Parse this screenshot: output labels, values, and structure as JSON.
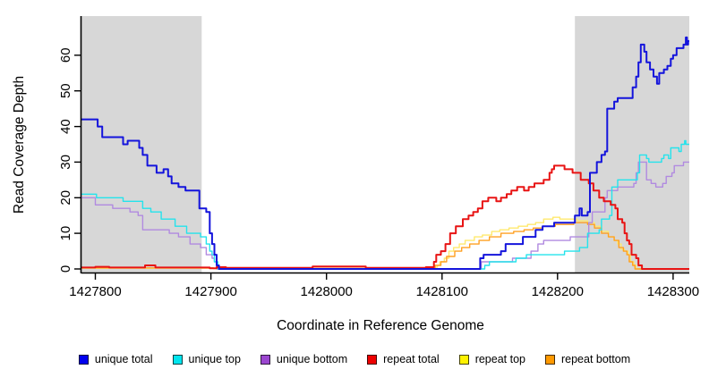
{
  "figure": {
    "shaded_region_color": "#d7d7d7",
    "axis_color": "#000000",
    "background": "#ffffff"
  },
  "chart_data": {
    "type": "line",
    "title": "",
    "xlabel": "Coordinate in Reference Genome",
    "ylabel": "Read Coverage Depth",
    "xlim": [
      1427788,
      1428314
    ],
    "ylim": [
      0,
      65
    ],
    "x_ticks": [
      1427800,
      1427900,
      1428000,
      1428100,
      1428200,
      1428300
    ],
    "y_ticks": [
      0,
      10,
      20,
      30,
      40,
      50,
      60
    ],
    "grid": false,
    "legend_position": "bottom",
    "shaded_regions": [
      {
        "from": 1427788,
        "to": 1427892
      },
      {
        "from": 1428215,
        "to": 1428314
      }
    ],
    "series": [
      {
        "name": "repeat top",
        "color": "#ffe96e",
        "swatch": "#fff200",
        "width": 1.4,
        "points": [
          [
            1427788,
            0.2
          ],
          [
            1427902,
            0.1
          ],
          [
            1428094,
            0.5
          ],
          [
            1428096,
            1
          ],
          [
            1428098,
            2
          ],
          [
            1428102,
            3
          ],
          [
            1428106,
            5
          ],
          [
            1428110,
            6
          ],
          [
            1428115,
            7
          ],
          [
            1428120,
            8
          ],
          [
            1428128,
            9
          ],
          [
            1428135,
            9.5
          ],
          [
            1428143,
            10.5
          ],
          [
            1428150,
            11
          ],
          [
            1428158,
            11.5
          ],
          [
            1428166,
            12
          ],
          [
            1428174,
            12.5
          ],
          [
            1428181,
            13
          ],
          [
            1428188,
            14
          ],
          [
            1428196,
            14.5
          ],
          [
            1428202,
            14
          ],
          [
            1428212,
            14
          ],
          [
            1428217,
            13.5
          ],
          [
            1428226,
            13
          ],
          [
            1428232,
            12
          ],
          [
            1428238,
            10.5
          ],
          [
            1428244,
            9
          ],
          [
            1428249,
            8
          ],
          [
            1428252,
            7
          ],
          [
            1428255,
            5.5
          ],
          [
            1428258,
            5
          ],
          [
            1428261,
            4
          ],
          [
            1428263,
            2
          ],
          [
            1428266,
            1
          ],
          [
            1428268,
            0
          ],
          [
            1428314,
            0
          ]
        ]
      },
      {
        "name": "repeat bottom",
        "color": "#ffa022",
        "swatch": "#ff9900",
        "width": 1.4,
        "points": [
          [
            1427788,
            0.3
          ],
          [
            1427902,
            0.15
          ],
          [
            1428090,
            0.3
          ],
          [
            1428094,
            1
          ],
          [
            1428099,
            2
          ],
          [
            1428104,
            3.5
          ],
          [
            1428111,
            5
          ],
          [
            1428117,
            6
          ],
          [
            1428124,
            7
          ],
          [
            1428132,
            8
          ],
          [
            1428141,
            9
          ],
          [
            1428151,
            10
          ],
          [
            1428162,
            10.5
          ],
          [
            1428171,
            11
          ],
          [
            1428179,
            11.5
          ],
          [
            1428187,
            12
          ],
          [
            1428198,
            12.5
          ],
          [
            1428214,
            13
          ],
          [
            1428226,
            12.5
          ],
          [
            1428232,
            11.5
          ],
          [
            1428238,
            10
          ],
          [
            1428244,
            9
          ],
          [
            1428249,
            8
          ],
          [
            1428253,
            6
          ],
          [
            1428257,
            5
          ],
          [
            1428260,
            4
          ],
          [
            1428262,
            2
          ],
          [
            1428265,
            1
          ],
          [
            1428267,
            0
          ],
          [
            1428314,
            0
          ]
        ]
      },
      {
        "name": "unique bottom",
        "color": "#b18ae0",
        "swatch": "#9b46d0",
        "width": 1.4,
        "points": [
          [
            1427788,
            20
          ],
          [
            1427800,
            18
          ],
          [
            1427815,
            17
          ],
          [
            1427830,
            16
          ],
          [
            1427837,
            15
          ],
          [
            1427841,
            11
          ],
          [
            1427864,
            10
          ],
          [
            1427872,
            9
          ],
          [
            1427882,
            7
          ],
          [
            1427891,
            6
          ],
          [
            1427896,
            4
          ],
          [
            1427901,
            3
          ],
          [
            1427903,
            2
          ],
          [
            1427905,
            0
          ],
          [
            1428134,
            2
          ],
          [
            1428161,
            3
          ],
          [
            1428177,
            5
          ],
          [
            1428183,
            7
          ],
          [
            1428188,
            8
          ],
          [
            1428211,
            9
          ],
          [
            1428220,
            9
          ],
          [
            1428227,
            13
          ],
          [
            1428230,
            16
          ],
          [
            1428241,
            20
          ],
          [
            1428243,
            22
          ],
          [
            1428252,
            23
          ],
          [
            1428266,
            24
          ],
          [
            1428268,
            27
          ],
          [
            1428270,
            30
          ],
          [
            1428275,
            30
          ],
          [
            1428277,
            25
          ],
          [
            1428281,
            24
          ],
          [
            1428285,
            23
          ],
          [
            1428291,
            24
          ],
          [
            1428294,
            26
          ],
          [
            1428299,
            27
          ],
          [
            1428301,
            29
          ],
          [
            1428307,
            29
          ],
          [
            1428309,
            30
          ],
          [
            1428314,
            30
          ]
        ]
      },
      {
        "name": "unique top",
        "color": "#24e3ec",
        "swatch": "#00e5ee",
        "width": 1.4,
        "points": [
          [
            1427788,
            21
          ],
          [
            1427801,
            20
          ],
          [
            1427824,
            19
          ],
          [
            1427841,
            17
          ],
          [
            1427848,
            16
          ],
          [
            1427857,
            14
          ],
          [
            1427869,
            12
          ],
          [
            1427879,
            10
          ],
          [
            1427891,
            9
          ],
          [
            1427896,
            7
          ],
          [
            1427899,
            5
          ],
          [
            1427901,
            4
          ],
          [
            1427903,
            2
          ],
          [
            1427906,
            0
          ],
          [
            1428137,
            1
          ],
          [
            1428141,
            2
          ],
          [
            1428164,
            3
          ],
          [
            1428173,
            4
          ],
          [
            1428206,
            5
          ],
          [
            1428219,
            6
          ],
          [
            1428226,
            10
          ],
          [
            1428236,
            11
          ],
          [
            1428238,
            14
          ],
          [
            1428245,
            15
          ],
          [
            1428247,
            23
          ],
          [
            1428252,
            25
          ],
          [
            1428269,
            27
          ],
          [
            1428271,
            32
          ],
          [
            1428277,
            31
          ],
          [
            1428279,
            30
          ],
          [
            1428287,
            30
          ],
          [
            1428290,
            31
          ],
          [
            1428292,
            32
          ],
          [
            1428296,
            31
          ],
          [
            1428298,
            34
          ],
          [
            1428305,
            33
          ],
          [
            1428307,
            35
          ],
          [
            1428310,
            36
          ],
          [
            1428311,
            35
          ],
          [
            1428314,
            35
          ]
        ]
      },
      {
        "name": "repeat total",
        "color": "#e81414",
        "swatch": "#ee0000",
        "width": 2,
        "points": [
          [
            1427788,
            0.4
          ],
          [
            1427800,
            0.6
          ],
          [
            1427812,
            0.4
          ],
          [
            1427843,
            1
          ],
          [
            1427852,
            0.4
          ],
          [
            1427899,
            0.2
          ],
          [
            1427905,
            0.5
          ],
          [
            1427913,
            0.3
          ],
          [
            1427988,
            0.7
          ],
          [
            1428034,
            0.3
          ],
          [
            1428086,
            0.5
          ],
          [
            1428093,
            2
          ],
          [
            1428095,
            4
          ],
          [
            1428099,
            5
          ],
          [
            1428103,
            7
          ],
          [
            1428107,
            10
          ],
          [
            1428112,
            12
          ],
          [
            1428118,
            14
          ],
          [
            1428123,
            15
          ],
          [
            1428127,
            16
          ],
          [
            1428131,
            17
          ],
          [
            1428135,
            19
          ],
          [
            1428140,
            20
          ],
          [
            1428147,
            19
          ],
          [
            1428151,
            20
          ],
          [
            1428156,
            21
          ],
          [
            1428160,
            22
          ],
          [
            1428165,
            23
          ],
          [
            1428171,
            22
          ],
          [
            1428175,
            23
          ],
          [
            1428180,
            24
          ],
          [
            1428188,
            25
          ],
          [
            1428193,
            27
          ],
          [
            1428195,
            28
          ],
          [
            1428197,
            29
          ],
          [
            1428203,
            29
          ],
          [
            1428206,
            28
          ],
          [
            1428213,
            27
          ],
          [
            1428220,
            25
          ],
          [
            1428227,
            24
          ],
          [
            1428231,
            22
          ],
          [
            1428236,
            20
          ],
          [
            1428240,
            19
          ],
          [
            1428246,
            18
          ],
          [
            1428250,
            17
          ],
          [
            1428252,
            14
          ],
          [
            1428256,
            13
          ],
          [
            1428258,
            10
          ],
          [
            1428260,
            8
          ],
          [
            1428262,
            7
          ],
          [
            1428264,
            4
          ],
          [
            1428268,
            3
          ],
          [
            1428270,
            1
          ],
          [
            1428273,
            0
          ],
          [
            1428314,
            0
          ]
        ]
      },
      {
        "name": "unique total",
        "color": "#1414dc",
        "swatch": "#0000ee",
        "width": 2,
        "points": [
          [
            1427788,
            42
          ],
          [
            1427802,
            40
          ],
          [
            1427806,
            37
          ],
          [
            1427824,
            35
          ],
          [
            1427828,
            36
          ],
          [
            1427838,
            34
          ],
          [
            1427841,
            32
          ],
          [
            1427845,
            29
          ],
          [
            1427853,
            27
          ],
          [
            1427859,
            28
          ],
          [
            1427863,
            26
          ],
          [
            1427866,
            24
          ],
          [
            1427872,
            23
          ],
          [
            1427878,
            22
          ],
          [
            1427890,
            17
          ],
          [
            1427896,
            16
          ],
          [
            1427899,
            10
          ],
          [
            1427901,
            7
          ],
          [
            1427903,
            4
          ],
          [
            1427905,
            1
          ],
          [
            1427907,
            0
          ],
          [
            1428133,
            3
          ],
          [
            1428136,
            4
          ],
          [
            1428151,
            5
          ],
          [
            1428155,
            7
          ],
          [
            1428170,
            9
          ],
          [
            1428181,
            11
          ],
          [
            1428187,
            12
          ],
          [
            1428197,
            13
          ],
          [
            1428215,
            15
          ],
          [
            1428219,
            17
          ],
          [
            1428221,
            15
          ],
          [
            1428226,
            16
          ],
          [
            1428228,
            27
          ],
          [
            1428234,
            30
          ],
          [
            1428238,
            32
          ],
          [
            1428241,
            33
          ],
          [
            1428243,
            45
          ],
          [
            1428249,
            47
          ],
          [
            1428252,
            48
          ],
          [
            1428265,
            51
          ],
          [
            1428268,
            54
          ],
          [
            1428270,
            58
          ],
          [
            1428272,
            63
          ],
          [
            1428275,
            61
          ],
          [
            1428277,
            58
          ],
          [
            1428280,
            56
          ],
          [
            1428283,
            54
          ],
          [
            1428286,
            52
          ],
          [
            1428288,
            55
          ],
          [
            1428292,
            56
          ],
          [
            1428295,
            57
          ],
          [
            1428298,
            59
          ],
          [
            1428300,
            60
          ],
          [
            1428303,
            62
          ],
          [
            1428306,
            62
          ],
          [
            1428309,
            63
          ],
          [
            1428311,
            65
          ],
          [
            1428312,
            63
          ],
          [
            1428313,
            64
          ],
          [
            1428314,
            64
          ]
        ]
      }
    ],
    "legend_order": [
      "unique total",
      "unique top",
      "unique bottom",
      "repeat total",
      "repeat top",
      "repeat bottom"
    ]
  }
}
